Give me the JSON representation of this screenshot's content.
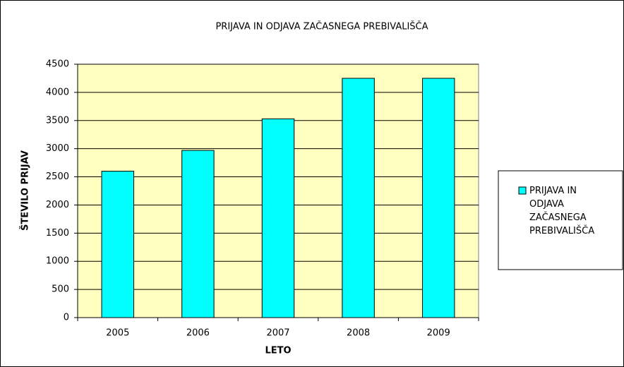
{
  "chart_data": {
    "type": "bar",
    "title": "PRIJAVA IN ODJAVA ZAČASNEGA PREBIVALIŠČA",
    "x_label": "LETO",
    "y_label": "ŠTEVILO PRIJAV",
    "categories": [
      "2005",
      "2006",
      "2007",
      "2008",
      "2009"
    ],
    "series": [
      {
        "name": "PRIJAVA IN ODJAVA ZAČASNEGA PREBIVALIŠČA",
        "color": "#00ffff",
        "values": [
          2600,
          2970,
          3530,
          4250,
          4250
        ]
      }
    ],
    "ylim": [
      0,
      4500
    ],
    "yticks": [
      0,
      500,
      1000,
      1500,
      2000,
      2500,
      3000,
      3500,
      4000,
      4500
    ],
    "grid": true,
    "legend": "right"
  }
}
